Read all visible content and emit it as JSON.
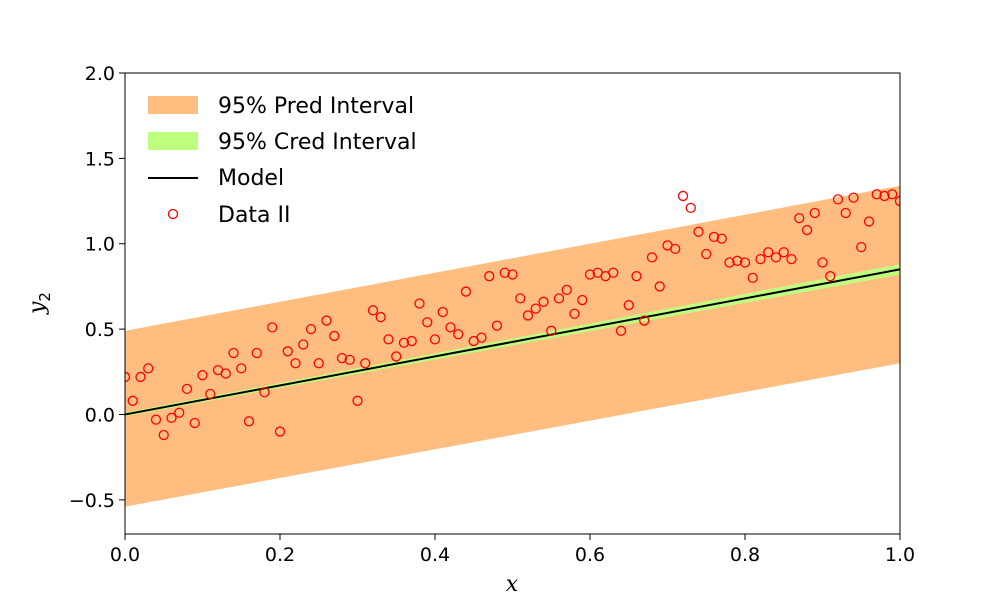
{
  "chart_data": {
    "type": "scatter",
    "xlabel": "x",
    "ylabel": "y",
    "ylabel_subscript": "2",
    "xlim": [
      0.0,
      1.0
    ],
    "ylim": [
      -0.7,
      2.0
    ],
    "x_ticks": [
      0.0,
      0.2,
      0.4,
      0.6,
      0.8,
      1.0
    ],
    "x_tick_labels": [
      "0.0",
      "0.2",
      "0.4",
      "0.6",
      "0.8",
      "1.0"
    ],
    "y_ticks": [
      -0.5,
      0.0,
      0.5,
      1.0,
      1.5,
      2.0
    ],
    "y_tick_labels": [
      "−0.5",
      "0.0",
      "0.5",
      "1.0",
      "1.5",
      "2.0"
    ],
    "grid": false,
    "legend_position": "top-left",
    "series": [
      {
        "name": "95% Pred Interval",
        "kind": "band",
        "color": "#ffbe80",
        "x": [
          0.0,
          1.0
        ],
        "lower": [
          -0.54,
          0.3
        ],
        "upper": [
          0.49,
          1.34
        ]
      },
      {
        "name": "95% Cred Interval",
        "kind": "band",
        "color": "#bfff80",
        "x": [
          0.0,
          1.0
        ],
        "lower": [
          -0.01,
          0.82
        ],
        "upper": [
          0.01,
          0.88
        ]
      },
      {
        "name": "Model",
        "kind": "line",
        "color": "#000000",
        "x": [
          0.0,
          1.0
        ],
        "y": [
          0.0,
          0.85
        ]
      },
      {
        "name": "Data II",
        "kind": "scatter",
        "color": "#ff0000",
        "x": [
          0.0,
          0.01,
          0.02,
          0.03,
          0.04,
          0.05,
          0.06,
          0.07,
          0.08,
          0.09,
          0.1,
          0.11,
          0.12,
          0.13,
          0.14,
          0.15,
          0.16,
          0.17,
          0.18,
          0.19,
          0.2,
          0.21,
          0.22,
          0.23,
          0.24,
          0.25,
          0.26,
          0.27,
          0.28,
          0.29,
          0.3,
          0.31,
          0.32,
          0.33,
          0.34,
          0.35,
          0.36,
          0.37,
          0.38,
          0.39,
          0.4,
          0.41,
          0.42,
          0.43,
          0.44,
          0.45,
          0.46,
          0.47,
          0.48,
          0.49,
          0.5,
          0.51,
          0.52,
          0.53,
          0.54,
          0.55,
          0.56,
          0.57,
          0.58,
          0.59,
          0.6,
          0.61,
          0.62,
          0.63,
          0.64,
          0.65,
          0.66,
          0.67,
          0.68,
          0.69,
          0.7,
          0.71,
          0.72,
          0.73,
          0.74,
          0.75,
          0.76,
          0.77,
          0.78,
          0.79,
          0.8,
          0.81,
          0.82,
          0.83,
          0.84,
          0.85,
          0.86,
          0.87,
          0.88,
          0.89,
          0.9,
          0.91,
          0.92,
          0.93,
          0.94,
          0.95,
          0.96,
          0.97,
          0.98,
          0.99,
          1.0
        ],
        "y": [
          0.22,
          0.08,
          0.22,
          0.27,
          -0.03,
          -0.12,
          -0.02,
          0.01,
          0.15,
          -0.05,
          0.23,
          0.12,
          0.26,
          0.24,
          0.36,
          0.27,
          -0.04,
          0.36,
          0.13,
          0.51,
          -0.1,
          0.37,
          0.3,
          0.41,
          0.5,
          0.3,
          0.55,
          0.46,
          0.33,
          0.32,
          0.08,
          0.3,
          0.61,
          0.57,
          0.44,
          0.34,
          0.42,
          0.43,
          0.65,
          0.54,
          0.44,
          0.6,
          0.51,
          0.47,
          0.72,
          0.43,
          0.45,
          0.81,
          0.52,
          0.83,
          0.82,
          0.68,
          0.58,
          0.62,
          0.66,
          0.49,
          0.68,
          0.73,
          0.59,
          0.67,
          0.82,
          0.83,
          0.81,
          0.83,
          0.49,
          0.64,
          0.81,
          0.55,
          0.92,
          0.75,
          0.99,
          0.97,
          1.28,
          1.21,
          1.07,
          0.94,
          1.04,
          1.03,
          0.89,
          0.9,
          0.89,
          0.8,
          0.91,
          0.95,
          0.92,
          0.95,
          0.91,
          1.15,
          1.08,
          1.18,
          0.89,
          0.81,
          1.26,
          1.18,
          1.27,
          0.98,
          1.13,
          1.29,
          1.28,
          1.29,
          1.25
        ]
      }
    ]
  }
}
